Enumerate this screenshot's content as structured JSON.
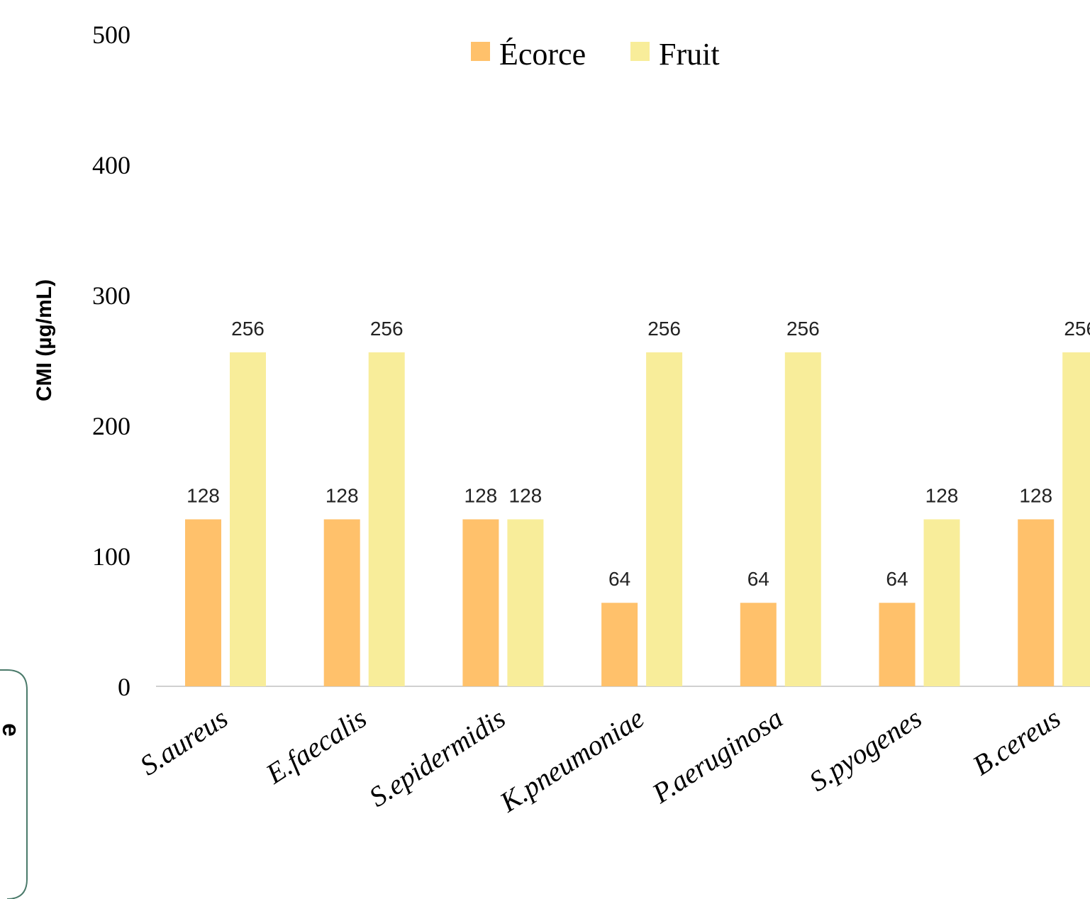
{
  "chart_data": {
    "type": "bar",
    "categories": [
      "S.aureus",
      "E.faecalis",
      "S.epidermidis",
      "K.pneumoniae",
      "P.aeruginosa",
      "S.pyogenes",
      "B.cereus"
    ],
    "series": [
      {
        "name": "Écorce",
        "values": [
          128,
          128,
          128,
          64,
          64,
          64,
          128
        ],
        "color": "#FFC16B"
      },
      {
        "name": "Fruit",
        "values": [
          256,
          256,
          128,
          256,
          256,
          128,
          256
        ],
        "color": "#F8ED9A"
      }
    ],
    "ylabel": "CMI (µg/mL)",
    "ylim": [
      0,
      500
    ],
    "yticks": [
      0,
      100,
      200,
      300,
      400,
      500
    ],
    "legend_position": "top-center",
    "grid": false
  },
  "side_fragment": {
    "text": "e",
    "border_color": "#4A7A6A"
  }
}
